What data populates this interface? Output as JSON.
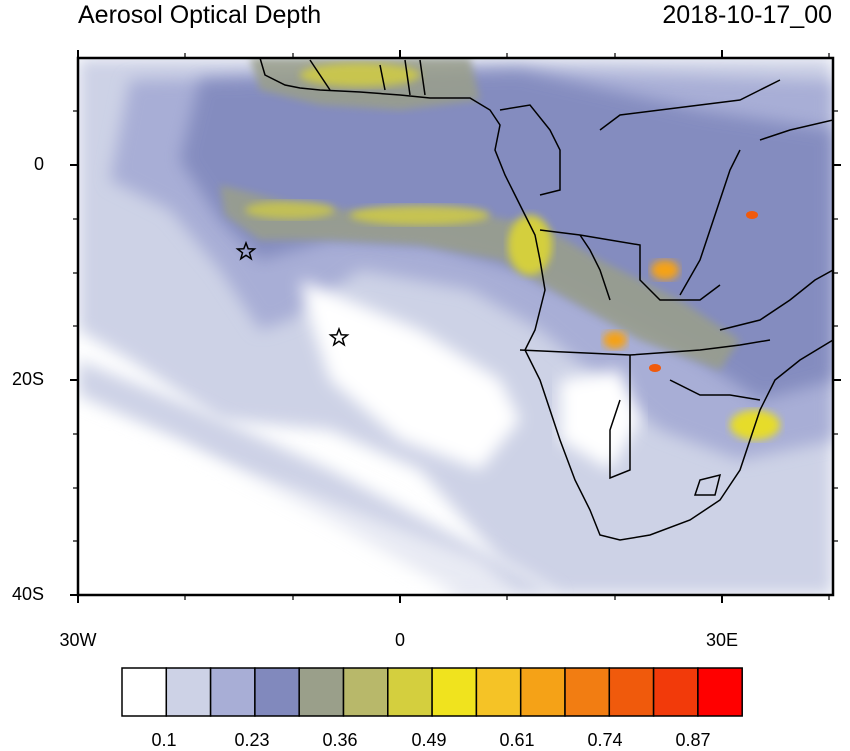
{
  "title_left": "Aerosol Optical Depth",
  "title_right": "2018-10-17_00",
  "axes": {
    "x_ticks": [
      "30W",
      "0",
      "30E"
    ],
    "y_ticks": [
      "0",
      "20S",
      "40S"
    ]
  },
  "colorbar": {
    "labels": [
      "0.1",
      "0.23",
      "0.36",
      "0.49",
      "0.61",
      "0.74",
      "0.87"
    ],
    "colors": [
      "#ffffff",
      "#cdd2e6",
      "#a8aed6",
      "#8189bd",
      "#9a9f8a",
      "#b8b86a",
      "#d4cf3e",
      "#f0e31e",
      "#f5c326",
      "#f5a217",
      "#f27d12",
      "#f05a0c",
      "#f23a0a",
      "#ff0000"
    ]
  },
  "colors": {
    "ocean_base": "#ffffff",
    "low_aod": "#cdd2e6",
    "mid_aod": "#a8aed6",
    "midhigh_aod": "#8189bd",
    "olive": "#9a9f8a",
    "yellow": "#e6dc2a",
    "orange": "#f5a217",
    "red": "#f05a0c"
  },
  "markers": [
    "star",
    "star"
  ]
}
